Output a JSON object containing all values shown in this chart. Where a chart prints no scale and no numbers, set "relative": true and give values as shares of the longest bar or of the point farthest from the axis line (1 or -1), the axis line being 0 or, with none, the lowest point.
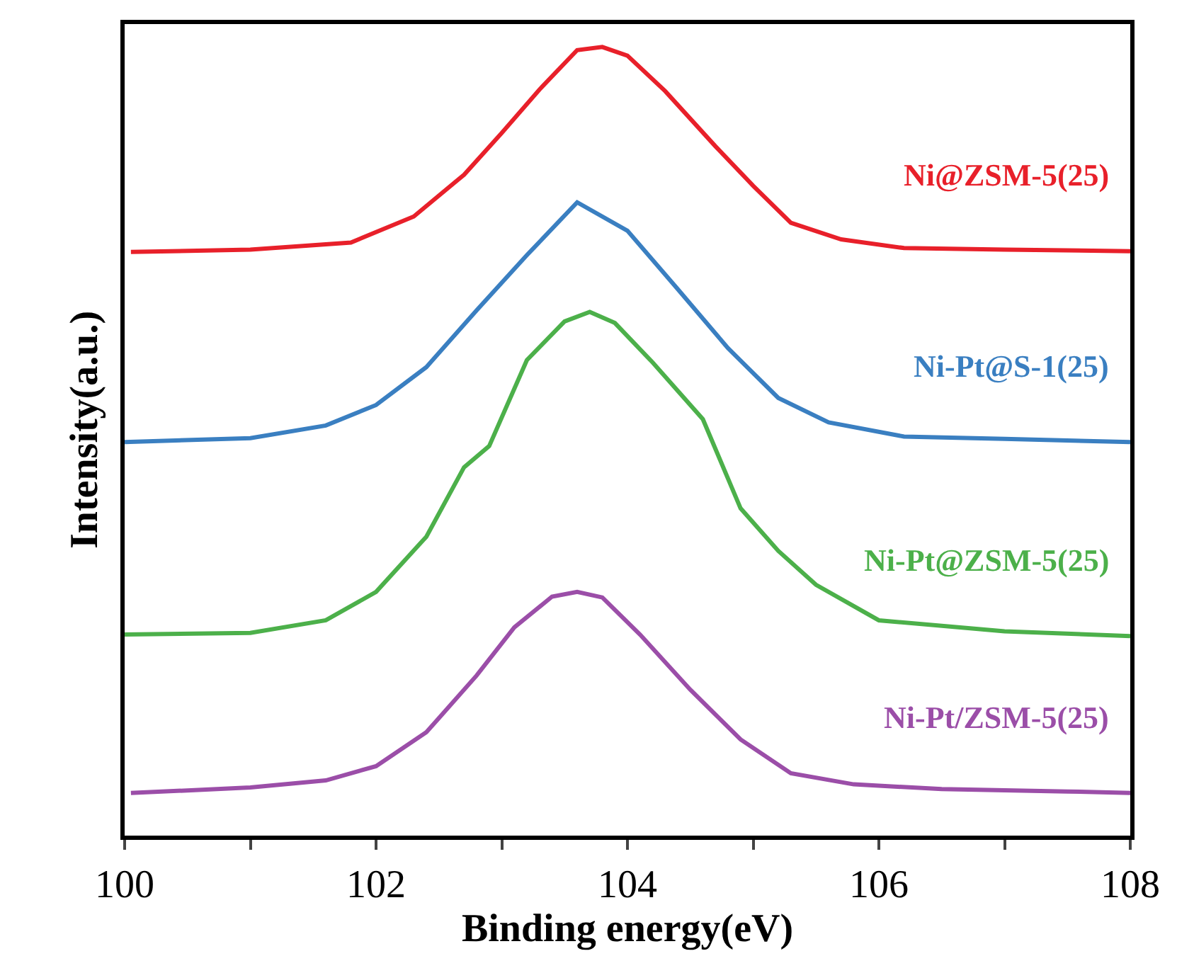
{
  "chart_data": {
    "type": "line",
    "relative": true,
    "xlabel": "Binding energy(eV)",
    "ylabel": "Intensity(a.u.)",
    "xlim": [
      100,
      108
    ],
    "xticks": [
      100,
      {
        "value": 101,
        "label": null
      },
      102,
      {
        "value": 103,
        "label": null
      },
      104,
      {
        "value": 105,
        "label": null
      },
      106,
      {
        "value": 107,
        "label": null
      },
      108
    ],
    "legend": false,
    "marker": "none",
    "line_style": "solid",
    "series": [
      {
        "name": "Ni@ZSM-5(25)",
        "color": "#e8202a",
        "x": [
          100.05,
          101,
          101.8,
          102.3,
          102.7,
          103,
          103.3,
          103.6,
          103.8,
          104,
          104.3,
          104.7,
          105,
          105.3,
          105.7,
          106.2,
          107,
          108
        ],
        "values": [
          0.74,
          0.743,
          0.752,
          0.785,
          0.838,
          0.891,
          0.946,
          0.996,
          1.0,
          0.989,
          0.944,
          0.874,
          0.824,
          0.777,
          0.756,
          0.745,
          0.743,
          0.741
        ]
      },
      {
        "name": "Ni-Pt@S-1(25)",
        "color": "#3a7fc1",
        "x": [
          100,
          101,
          101.6,
          102,
          102.4,
          102.8,
          103.2,
          103.6,
          104,
          104.4,
          104.8,
          105.2,
          105.6,
          106.2,
          107,
          108
        ],
        "values": [
          0.499,
          0.504,
          0.52,
          0.546,
          0.594,
          0.666,
          0.736,
          0.803,
          0.767,
          0.693,
          0.618,
          0.555,
          0.524,
          0.506,
          0.503,
          0.499
        ]
      },
      {
        "name": "Ni-Pt@ZSM-5(25)",
        "color": "#4cb04a",
        "x": [
          100,
          101,
          101.6,
          102,
          102.4,
          102.7,
          102.9,
          103.2,
          103.5,
          103.7,
          103.9,
          104.2,
          104.6,
          104.9,
          105.2,
          105.5,
          106,
          107,
          108
        ],
        "values": [
          0.255,
          0.257,
          0.273,
          0.309,
          0.379,
          0.467,
          0.494,
          0.603,
          0.652,
          0.664,
          0.65,
          0.6,
          0.528,
          0.415,
          0.361,
          0.318,
          0.273,
          0.259,
          0.253
        ]
      },
      {
        "name": "Ni-Pt/ZSM-5(25)",
        "color": "#9b4ea8",
        "x": [
          100.05,
          101,
          101.6,
          102,
          102.4,
          102.8,
          103.1,
          103.4,
          103.6,
          103.8,
          104.1,
          104.5,
          104.9,
          105.3,
          105.8,
          106.5,
          107.5,
          108
        ],
        "values": [
          0.054,
          0.061,
          0.07,
          0.088,
          0.131,
          0.203,
          0.264,
          0.303,
          0.309,
          0.302,
          0.255,
          0.185,
          0.122,
          0.079,
          0.065,
          0.059,
          0.056,
          0.054
        ]
      }
    ]
  }
}
